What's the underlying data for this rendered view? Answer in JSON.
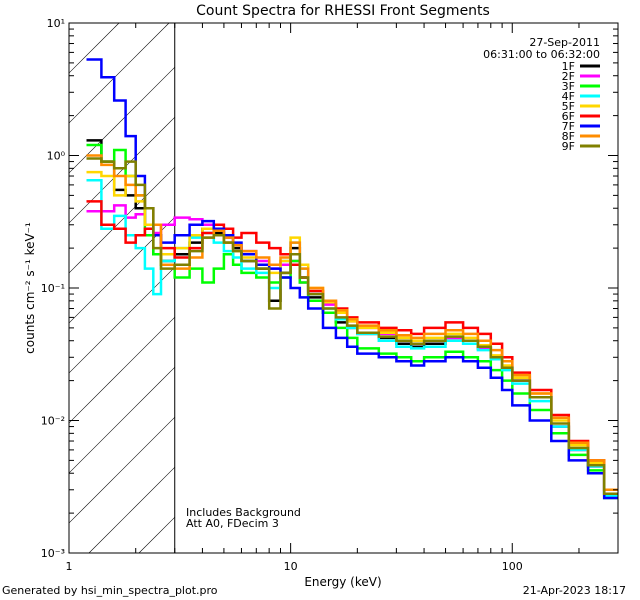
{
  "chart_data": {
    "type": "line",
    "title": "Count Spectra for RHESSI Front Segments",
    "xlabel": "Energy (keV)",
    "ylabel": "counts cm⁻² s⁻¹ keV⁻¹",
    "xscale": "log",
    "yscale": "log",
    "xlim": [
      1,
      300
    ],
    "ylim": [
      0.001,
      10
    ],
    "x_ticks": [
      1,
      10,
      100
    ],
    "x_tick_labels": [
      "1",
      "10",
      "100"
    ],
    "y_ticks": [
      0.001,
      0.01,
      0.1,
      1,
      10
    ],
    "y_tick_labels": [
      "10⁻³",
      "10⁻²",
      "10⁻¹",
      "10⁰",
      "10¹"
    ],
    "date": "27-Sep-2011",
    "time_range": "06:31:00 to 06:32:00",
    "annotations": [
      "Includes Background",
      "Att A0, FDecim 3"
    ],
    "threshold_energy": 3,
    "energy_edges": [
      1.2,
      1.4,
      1.6,
      1.8,
      2.0,
      2.2,
      2.4,
      2.6,
      3.0,
      3.5,
      4.0,
      4.5,
      5.0,
      5.5,
      6.0,
      7.0,
      8.0,
      9.0,
      10.0,
      11.0,
      12.0,
      14.0,
      16.0,
      18.0,
      20.0,
      25.0,
      30.0,
      35.0,
      40.0,
      50.0,
      60.0,
      70.0,
      80.0,
      90.0,
      100.0,
      120.0,
      150.0,
      180.0,
      220.0,
      260.0,
      300.0
    ],
    "series": [
      {
        "name": "1F",
        "color": "#000000",
        "values": [
          1.3,
          0.9,
          0.55,
          0.5,
          0.4,
          0.3,
          0.18,
          0.16,
          0.18,
          0.22,
          0.28,
          0.26,
          0.22,
          0.2,
          0.16,
          0.14,
          0.08,
          0.13,
          0.2,
          0.12,
          0.085,
          0.065,
          0.055,
          0.05,
          0.045,
          0.042,
          0.038,
          0.036,
          0.038,
          0.042,
          0.04,
          0.035,
          0.03,
          0.025,
          0.02,
          0.015,
          0.009,
          0.006,
          0.0045,
          0.0028
        ]
      },
      {
        "name": "2F",
        "color": "#ff00ff",
        "values": [
          0.38,
          0.38,
          0.42,
          0.34,
          0.36,
          0.3,
          0.26,
          0.3,
          0.34,
          0.33,
          0.3,
          0.27,
          0.24,
          0.21,
          0.19,
          0.16,
          0.14,
          0.15,
          0.16,
          0.11,
          0.09,
          0.075,
          0.065,
          0.056,
          0.05,
          0.045,
          0.04,
          0.038,
          0.04,
          0.042,
          0.04,
          0.035,
          0.03,
          0.025,
          0.02,
          0.015,
          0.009,
          0.006,
          0.0045,
          0.0028
        ]
      },
      {
        "name": "3F",
        "color": "#00ff00",
        "values": [
          1.2,
          0.9,
          1.1,
          0.7,
          0.5,
          0.25,
          0.18,
          0.15,
          0.12,
          0.14,
          0.11,
          0.14,
          0.18,
          0.15,
          0.13,
          0.12,
          0.11,
          0.12,
          0.16,
          0.11,
          0.08,
          0.065,
          0.05,
          0.042,
          0.035,
          0.032,
          0.03,
          0.028,
          0.03,
          0.033,
          0.03,
          0.028,
          0.024,
          0.02,
          0.016,
          0.012,
          0.008,
          0.0055,
          0.0042,
          0.0026
        ]
      },
      {
        "name": "4F",
        "color": "#00ffff",
        "values": [
          0.65,
          0.28,
          0.35,
          0.25,
          0.2,
          0.14,
          0.09,
          0.16,
          0.2,
          0.24,
          0.26,
          0.22,
          0.19,
          0.17,
          0.14,
          0.13,
          0.1,
          0.16,
          0.22,
          0.14,
          0.09,
          0.07,
          0.058,
          0.05,
          0.045,
          0.04,
          0.036,
          0.035,
          0.036,
          0.04,
          0.038,
          0.034,
          0.029,
          0.024,
          0.019,
          0.014,
          0.009,
          0.006,
          0.0045,
          0.0027
        ]
      },
      {
        "name": "5F",
        "color": "#ffd700",
        "values": [
          0.75,
          0.7,
          0.5,
          0.7,
          0.45,
          0.3,
          0.25,
          0.18,
          0.2,
          0.25,
          0.28,
          0.25,
          0.22,
          0.19,
          0.17,
          0.15,
          0.13,
          0.16,
          0.24,
          0.15,
          0.1,
          0.078,
          0.065,
          0.056,
          0.05,
          0.046,
          0.042,
          0.04,
          0.042,
          0.045,
          0.042,
          0.037,
          0.031,
          0.026,
          0.021,
          0.016,
          0.01,
          0.0065,
          0.0048,
          0.003
        ]
      },
      {
        "name": "6F",
        "color": "#ff0000",
        "values": [
          0.45,
          0.3,
          0.28,
          0.22,
          0.25,
          0.28,
          0.25,
          0.2,
          0.17,
          0.2,
          0.26,
          0.3,
          0.28,
          0.24,
          0.26,
          0.22,
          0.2,
          0.18,
          0.15,
          0.12,
          0.095,
          0.08,
          0.07,
          0.06,
          0.055,
          0.05,
          0.048,
          0.045,
          0.05,
          0.055,
          0.05,
          0.045,
          0.038,
          0.03,
          0.023,
          0.017,
          0.011,
          0.007,
          0.005,
          0.003
        ]
      },
      {
        "name": "7F",
        "color": "#0000ff",
        "values": [
          5.3,
          3.9,
          2.6,
          1.4,
          0.7,
          0.4,
          0.25,
          0.22,
          0.25,
          0.3,
          0.32,
          0.28,
          0.25,
          0.22,
          0.18,
          0.15,
          0.14,
          0.12,
          0.1,
          0.085,
          0.07,
          0.05,
          0.042,
          0.036,
          0.032,
          0.03,
          0.028,
          0.026,
          0.028,
          0.03,
          0.028,
          0.025,
          0.021,
          0.017,
          0.013,
          0.01,
          0.007,
          0.005,
          0.004,
          0.0026
        ]
      },
      {
        "name": "8F",
        "color": "#ff8c00",
        "values": [
          1.0,
          0.85,
          0.7,
          0.6,
          0.5,
          0.4,
          0.3,
          0.15,
          0.14,
          0.17,
          0.24,
          0.27,
          0.24,
          0.21,
          0.19,
          0.17,
          0.15,
          0.17,
          0.22,
          0.14,
          0.1,
          0.08,
          0.068,
          0.058,
          0.052,
          0.048,
          0.044,
          0.042,
          0.045,
          0.048,
          0.045,
          0.04,
          0.034,
          0.028,
          0.022,
          0.016,
          0.0105,
          0.0068,
          0.005,
          0.003
        ]
      },
      {
        "name": "9F",
        "color": "#808000",
        "values": [
          0.95,
          0.9,
          0.8,
          0.9,
          0.6,
          0.4,
          0.2,
          0.14,
          0.15,
          0.19,
          0.24,
          0.25,
          0.22,
          0.19,
          0.16,
          0.14,
          0.07,
          0.13,
          0.18,
          0.12,
          0.09,
          0.07,
          0.06,
          0.052,
          0.046,
          0.043,
          0.04,
          0.038,
          0.04,
          0.043,
          0.04,
          0.036,
          0.03,
          0.025,
          0.02,
          0.015,
          0.0095,
          0.0062,
          0.0046,
          0.0028
        ]
      }
    ]
  },
  "footer": {
    "generated_by": "Generated by hsi_min_spectra_plot.pro",
    "timestamp": "21-Apr-2023 18:17"
  }
}
